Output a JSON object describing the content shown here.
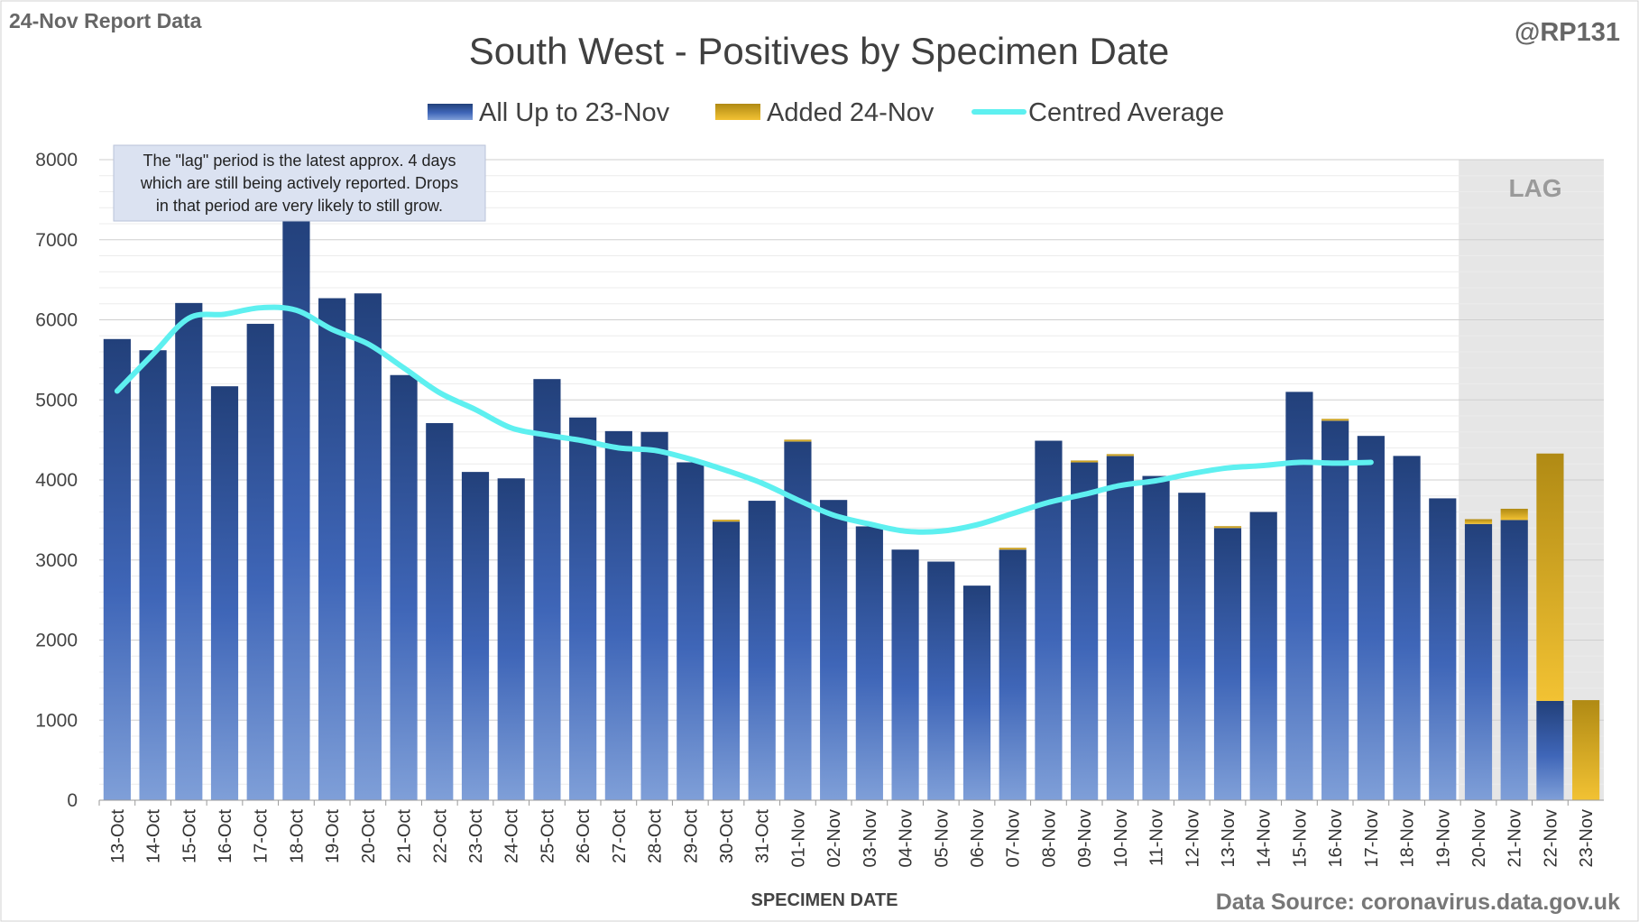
{
  "report_label": "24-Nov Report Data",
  "handle": "@RP131",
  "source_label": "Data Source: coronavirus.data.gov.uk",
  "lag_label": "LAG",
  "note_lines": [
    "The \"lag\" period is the latest approx. 4 days",
    "which are still being actively reported. Drops",
    "in that period are very likely to still grow."
  ],
  "colors": {
    "base_top": "#22407a",
    "base_bottom": "#7f9fd8",
    "added_top": "#b08a14",
    "added_bottom": "#f2c233",
    "average": "#5ef0f0",
    "lag_shade": "#e6e6e6",
    "grid": "#d9d9d9",
    "note_bg": "#dbe2f1"
  },
  "chart_data": {
    "type": "bar",
    "stacked": true,
    "title": "South West - Positives by Specimen Date",
    "xlabel": "SPECIMEN DATE",
    "ylabel": "",
    "ylim": [
      0,
      8000
    ],
    "yticks": [
      0,
      1000,
      2000,
      3000,
      4000,
      5000,
      6000,
      7000,
      8000
    ],
    "grid": true,
    "legend_position": "top-center",
    "categories": [
      "13-Oct",
      "14-Oct",
      "15-Oct",
      "16-Oct",
      "17-Oct",
      "18-Oct",
      "19-Oct",
      "20-Oct",
      "21-Oct",
      "22-Oct",
      "23-Oct",
      "24-Oct",
      "25-Oct",
      "26-Oct",
      "27-Oct",
      "28-Oct",
      "29-Oct",
      "30-Oct",
      "31-Oct",
      "01-Nov",
      "02-Nov",
      "03-Nov",
      "04-Nov",
      "05-Nov",
      "06-Nov",
      "07-Nov",
      "08-Nov",
      "09-Nov",
      "10-Nov",
      "11-Nov",
      "12-Nov",
      "13-Nov",
      "14-Nov",
      "15-Nov",
      "16-Nov",
      "17-Nov",
      "18-Nov",
      "19-Nov",
      "20-Nov",
      "21-Nov",
      "22-Nov",
      "23-Nov"
    ],
    "lag_start": "20-Nov",
    "series": [
      {
        "name": "All Up to 23-Nov",
        "kind": "bar",
        "values": [
          5760,
          5620,
          6210,
          5170,
          5950,
          7350,
          6270,
          6330,
          5310,
          4710,
          4100,
          4020,
          5260,
          4780,
          4610,
          4600,
          4220,
          3480,
          3740,
          4480,
          3750,
          3420,
          3130,
          2980,
          2680,
          3130,
          4490,
          4220,
          4300,
          4050,
          3840,
          3400,
          3600,
          5100,
          4740,
          4550,
          4300,
          3770,
          3450,
          3500,
          1240,
          0
        ]
      },
      {
        "name": "Added 24-Nov",
        "kind": "bar",
        "values": [
          0,
          0,
          0,
          0,
          0,
          0,
          0,
          0,
          0,
          0,
          0,
          0,
          0,
          0,
          0,
          0,
          0,
          10,
          0,
          20,
          0,
          0,
          0,
          0,
          0,
          20,
          0,
          20,
          20,
          0,
          0,
          10,
          0,
          0,
          20,
          0,
          0,
          0,
          60,
          140,
          3090,
          1250
        ]
      },
      {
        "name": "Centred Average",
        "kind": "line",
        "values": [
          5110,
          5570,
          6020,
          6070,
          6150,
          6120,
          5880,
          5700,
          5400,
          5090,
          4880,
          4650,
          4560,
          4490,
          4400,
          4370,
          4260,
          4120,
          3960,
          3750,
          3560,
          3450,
          3360,
          3360,
          3440,
          3580,
          3720,
          3820,
          3930,
          3990,
          4080,
          4150,
          4180,
          4220,
          4210,
          4220,
          null,
          null,
          null,
          null,
          null,
          null
        ]
      }
    ]
  }
}
